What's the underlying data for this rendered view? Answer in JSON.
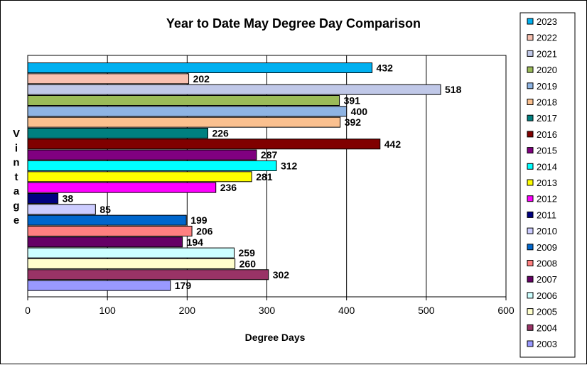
{
  "chart_data": {
    "type": "bar",
    "orientation": "horizontal",
    "title": "Year to Date May Degree Day Comparison",
    "xlabel": "Degree Days",
    "ylabel": "Vintage",
    "xlim": [
      0,
      600
    ],
    "x_ticks": [
      "0",
      "100",
      "200",
      "300",
      "400",
      "500",
      "600"
    ],
    "grid": "vertical major gridlines",
    "legend_position": "right",
    "series": [
      {
        "name": "2023",
        "value": 432,
        "color": "#00B0F0"
      },
      {
        "name": "2022",
        "value": 202,
        "color": "#F8C0B0"
      },
      {
        "name": "2021",
        "value": 518,
        "color": "#C0C8E8"
      },
      {
        "name": "2020",
        "value": 391,
        "color": "#9BBB59"
      },
      {
        "name": "2019",
        "value": 400,
        "color": "#8EB4E3"
      },
      {
        "name": "2018",
        "value": 392,
        "color": "#FAC08F"
      },
      {
        "name": "2017",
        "value": 226,
        "color": "#008080"
      },
      {
        "name": "2016",
        "value": 442,
        "color": "#800000"
      },
      {
        "name": "2015",
        "value": 287,
        "color": "#800080"
      },
      {
        "name": "2014",
        "value": 312,
        "color": "#00FFFF"
      },
      {
        "name": "2013",
        "value": 281,
        "color": "#FFFF00"
      },
      {
        "name": "2012",
        "value": 236,
        "color": "#FF00FF"
      },
      {
        "name": "2011",
        "value": 38,
        "color": "#000080"
      },
      {
        "name": "2010",
        "value": 85,
        "color": "#CCCCFF"
      },
      {
        "name": "2009",
        "value": 199,
        "color": "#0066CC"
      },
      {
        "name": "2008",
        "value": 206,
        "color": "#FF8080"
      },
      {
        "name": "2007",
        "value": 194,
        "color": "#660066"
      },
      {
        "name": "2006",
        "value": 259,
        "color": "#CCFFFF"
      },
      {
        "name": "2005",
        "value": 260,
        "color": "#FFFFCC"
      },
      {
        "name": "2004",
        "value": 302,
        "color": "#993366"
      },
      {
        "name": "2003",
        "value": 179,
        "color": "#9999FF"
      }
    ]
  }
}
